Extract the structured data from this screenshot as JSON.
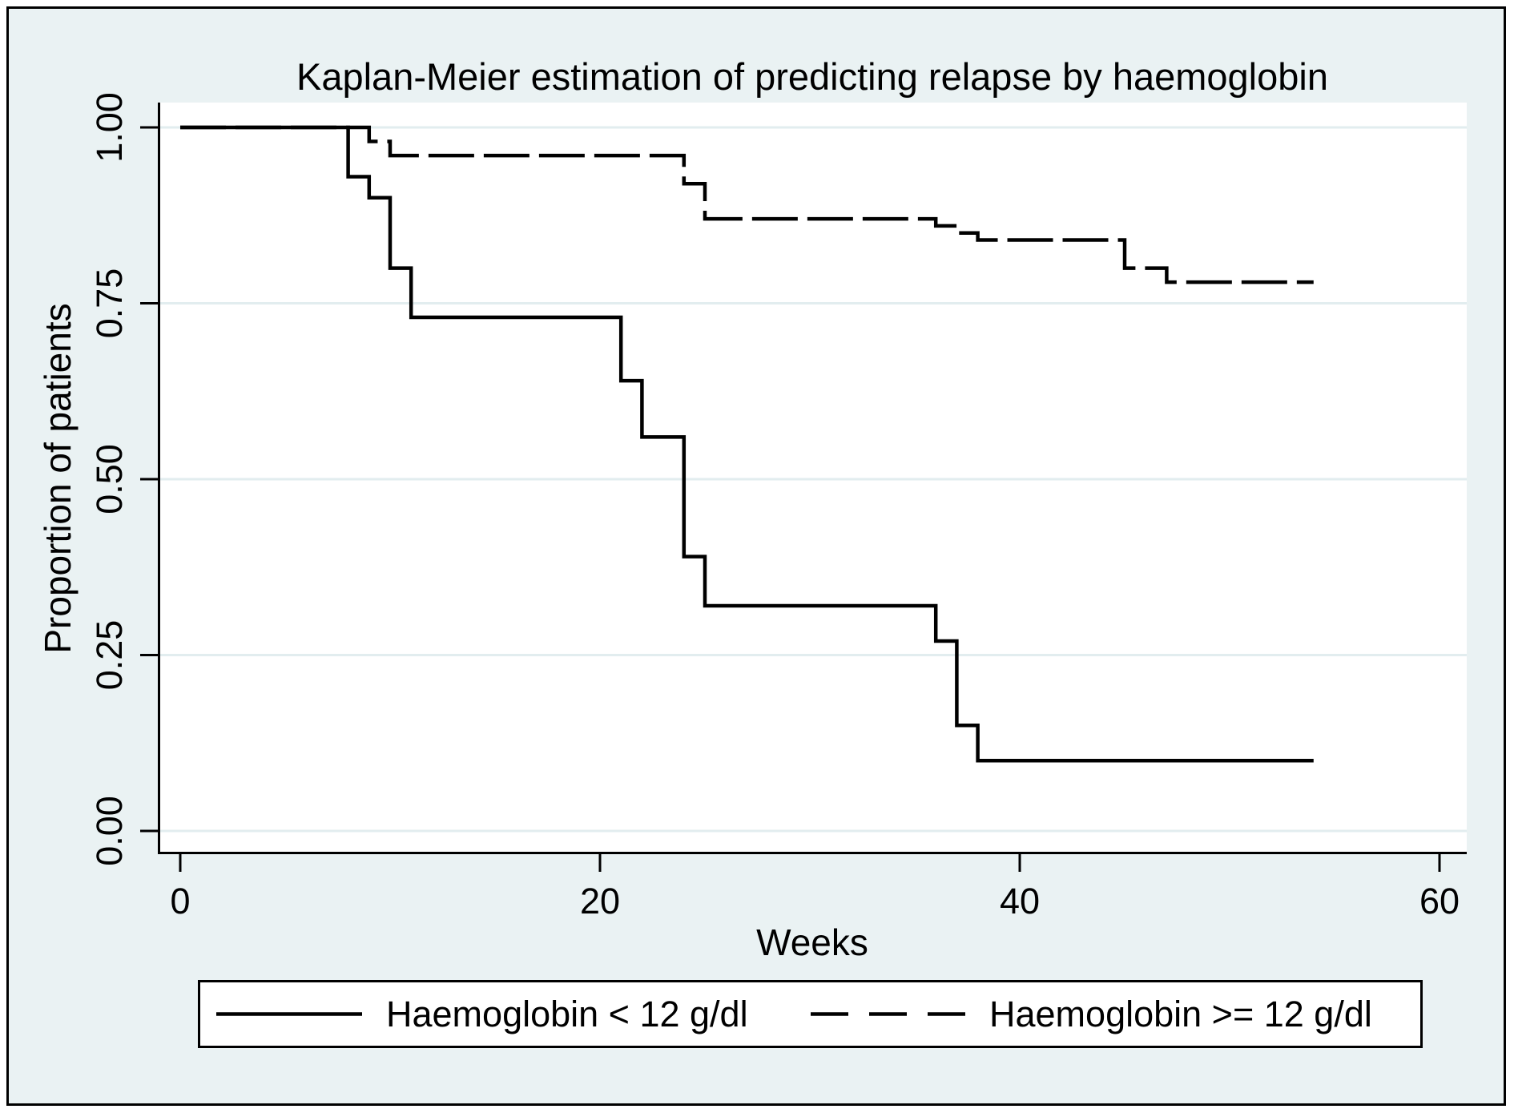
{
  "chart_data": {
    "type": "line",
    "subtype": "kaplan-meier-step",
    "title": "Kaplan-Meier estimation of predicting relapse by haemoglobin",
    "xlabel": "Weeks",
    "ylabel": "Proportion of patients",
    "xlim": [
      0,
      60
    ],
    "ylim": [
      0.0,
      1.0
    ],
    "x_ticks": [
      {
        "value": 0,
        "label": "0"
      },
      {
        "value": 20,
        "label": "20"
      },
      {
        "value": 40,
        "label": "40"
      },
      {
        "value": 60,
        "label": "60"
      }
    ],
    "y_ticks": [
      {
        "value": 0.0,
        "label": "0.00"
      },
      {
        "value": 0.25,
        "label": "0.25"
      },
      {
        "value": 0.5,
        "label": "0.50"
      },
      {
        "value": 0.75,
        "label": "0.75"
      },
      {
        "value": 1.0,
        "label": "1.00"
      }
    ],
    "grid": "horizontal",
    "legend_position": "below",
    "series": [
      {
        "name": "Haemoglobin < 12 g/dl",
        "line_style": "solid",
        "steps": [
          [
            0,
            1.0
          ],
          [
            8,
            0.93
          ],
          [
            9,
            0.9
          ],
          [
            10,
            0.8
          ],
          [
            11,
            0.73
          ],
          [
            21,
            0.64
          ],
          [
            22,
            0.56
          ],
          [
            24,
            0.39
          ],
          [
            25,
            0.32
          ],
          [
            36,
            0.27
          ],
          [
            37,
            0.15
          ],
          [
            38,
            0.1
          ]
        ],
        "end_time": 54
      },
      {
        "name": "Haemoglobin >= 12 g/dl",
        "line_style": "dashed",
        "steps": [
          [
            0,
            1.0
          ],
          [
            9,
            0.98
          ],
          [
            10,
            0.96
          ],
          [
            24,
            0.92
          ],
          [
            25,
            0.87
          ],
          [
            36,
            0.86
          ],
          [
            37,
            0.85
          ],
          [
            38,
            0.84
          ],
          [
            45,
            0.8
          ],
          [
            47,
            0.78
          ]
        ],
        "end_time": 54
      }
    ]
  },
  "legend": {
    "items": [
      {
        "label": "Haemoglobin < 12 g/dl",
        "line_style": "solid"
      },
      {
        "label": "Haemoglobin >= 12 g/dl",
        "line_style": "dashed"
      }
    ]
  },
  "colors": {
    "background": "#eaf2f3",
    "plot_background": "#ffffff",
    "gridline": "#e2edef",
    "line": "#000000",
    "text": "#000000",
    "frame_border": "#000000"
  }
}
